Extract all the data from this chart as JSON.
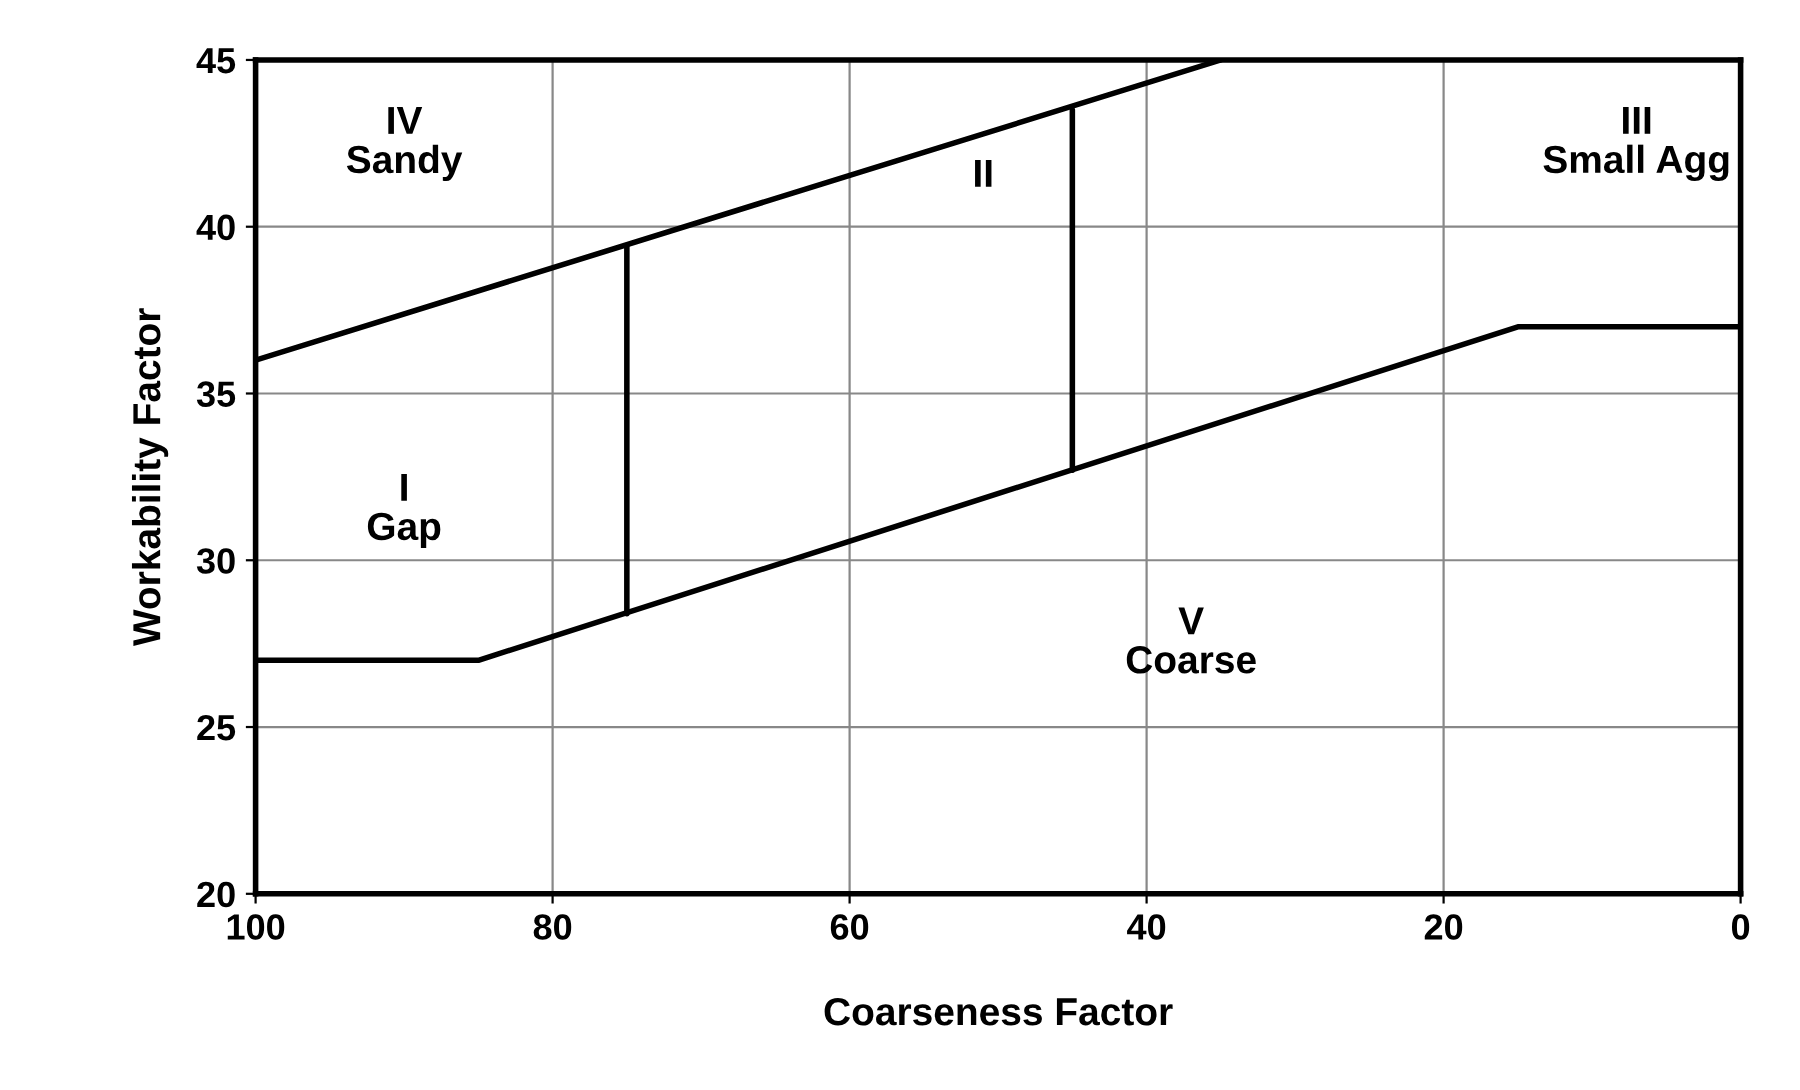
{
  "chart_data": {
    "type": "line",
    "xlabel": "Coarseness Factor",
    "ylabel": "Workability Factor",
    "xlim": [
      100,
      0
    ],
    "ylim": [
      20,
      45
    ],
    "xticks": [
      100,
      80,
      60,
      40,
      20,
      0
    ],
    "yticks": [
      20,
      25,
      30,
      35,
      40,
      45
    ],
    "grid": true,
    "series": [
      {
        "color": "#000000",
        "x": [
          100,
          35
        ],
        "values": [
          36,
          45
        ]
      },
      {
        "color": "#000000",
        "x": [
          100,
          85,
          15,
          0
        ],
        "values": [
          27,
          27,
          37,
          37
        ]
      },
      {
        "color": "#000000",
        "x": [
          75,
          75
        ],
        "values": [
          28.4,
          39.4
        ]
      },
      {
        "color": "#000000",
        "x": [
          45,
          45
        ],
        "values": [
          32.7,
          43.5
        ]
      }
    ],
    "annotations": [
      "IV\nSandy",
      "II",
      "III\nSmall Agg",
      "I\nGap",
      "V\nCoarse"
    ]
  }
}
